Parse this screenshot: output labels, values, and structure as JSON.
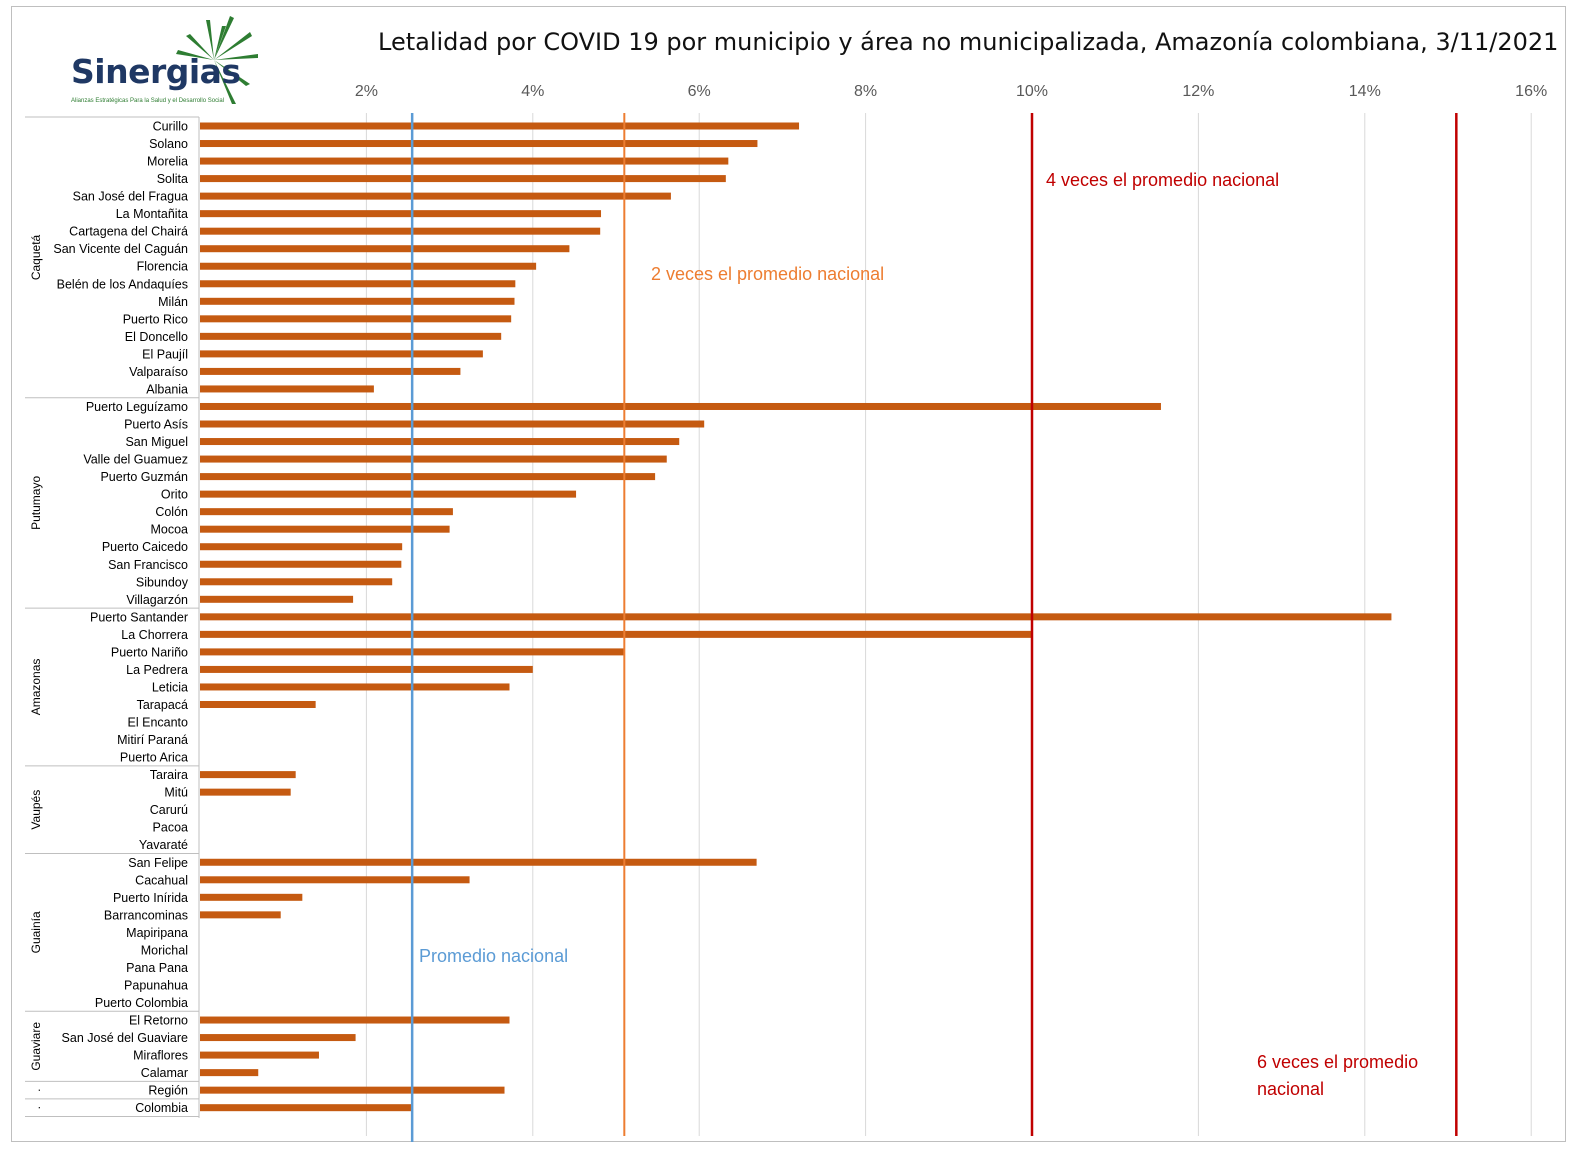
{
  "logo": {
    "word": "Sinergias",
    "tagline": "Alianzas Estratégicas Para la Salud y el Desarrollo Social"
  },
  "chart_data": {
    "type": "bar",
    "orientation": "horizontal",
    "title": "Letalidad por COVID 19 por municipio y área no municipalizada, Amazonía colombiana, 3/11/2021",
    "xlabel": "",
    "ylabel": "",
    "xlim": [
      0,
      16
    ],
    "x_ticks": [
      "2%",
      "4%",
      "6%",
      "8%",
      "10%",
      "12%",
      "14%",
      "16%"
    ],
    "x_tick_values": [
      2,
      4,
      6,
      8,
      10,
      12,
      14,
      16
    ],
    "grid": true,
    "legend": "none",
    "bar_color": "#c55a11",
    "groups": [
      {
        "name": "Caquetá",
        "categories": [
          "Curillo",
          "Solano",
          "Morelia",
          "Solita",
          "San José del Fragua",
          "La Montañita",
          "Cartagena del Chairá",
          "San Vicente del Caguán",
          "Florencia",
          "Belén de los Andaquíes",
          "Milán",
          "Puerto Rico",
          "El Doncello",
          "El Paujíl",
          "Valparaíso",
          "Albania"
        ]
      },
      {
        "name": "Putumayo",
        "categories": [
          "Puerto Leguízamo",
          "Puerto Asís",
          "San Miguel",
          "Valle del Guamuez",
          "Puerto Guzmán",
          "Orito",
          "Colón",
          "Mocoa",
          "Puerto Caicedo",
          "San Francisco",
          "Sibundoy",
          "Villagarzón"
        ]
      },
      {
        "name": "Amazonas",
        "categories": [
          "Puerto Santander",
          "La Chorrera",
          "Puerto Nariño",
          "La Pedrera",
          "Leticia",
          "Tarapacá",
          "El Encanto",
          "Mitirí Paraná",
          "Puerto Arica"
        ]
      },
      {
        "name": "Vaupés",
        "categories": [
          "Taraira",
          "Mitú",
          "Carurú",
          "Pacoa",
          "Yavaraté"
        ]
      },
      {
        "name": "Guainía",
        "categories": [
          "San Felipe",
          "Cacahual",
          "Puerto Inírida",
          "Barrancominas",
          "Mapiripana",
          "Morichal",
          "Pana Pana",
          "Papunahua",
          "Puerto Colombia"
        ]
      },
      {
        "name": "Guaviare",
        "categories": [
          "El Retorno",
          "San José del Guaviare",
          "Miraflores",
          "Calamar"
        ]
      },
      {
        "name": ".",
        "categories": [
          "Región"
        ]
      },
      {
        "name": ".",
        "categories": [
          "Colombia"
        ]
      }
    ],
    "values": [
      7.2,
      6.7,
      6.35,
      6.32,
      5.66,
      4.82,
      4.81,
      4.44,
      4.04,
      3.79,
      3.78,
      3.74,
      3.62,
      3.4,
      3.13,
      2.09,
      11.55,
      6.06,
      5.76,
      5.61,
      5.47,
      4.52,
      3.04,
      3.0,
      2.43,
      2.42,
      2.31,
      1.84,
      14.32,
      10.0,
      5.09,
      4.0,
      3.72,
      1.39,
      0,
      0,
      0,
      1.15,
      1.09,
      0,
      0,
      0,
      6.69,
      3.24,
      1.23,
      0.97,
      0,
      0,
      0,
      0,
      0,
      3.72,
      1.87,
      1.43,
      0.7,
      3.66,
      2.55
    ],
    "reference_lines": [
      {
        "value": 2.55,
        "color": "#5b9bd5",
        "label": "Promedio nacional"
      },
      {
        "value": 5.1,
        "color": "#ed7d31",
        "label": "2 veces el promedio nacional"
      },
      {
        "value": 10.0,
        "color": "#c00000",
        "label": "4 veces el promedio nacional"
      },
      {
        "value": 15.1,
        "color": "#c00000",
        "label": "6 veces el promedio nacional"
      }
    ]
  }
}
